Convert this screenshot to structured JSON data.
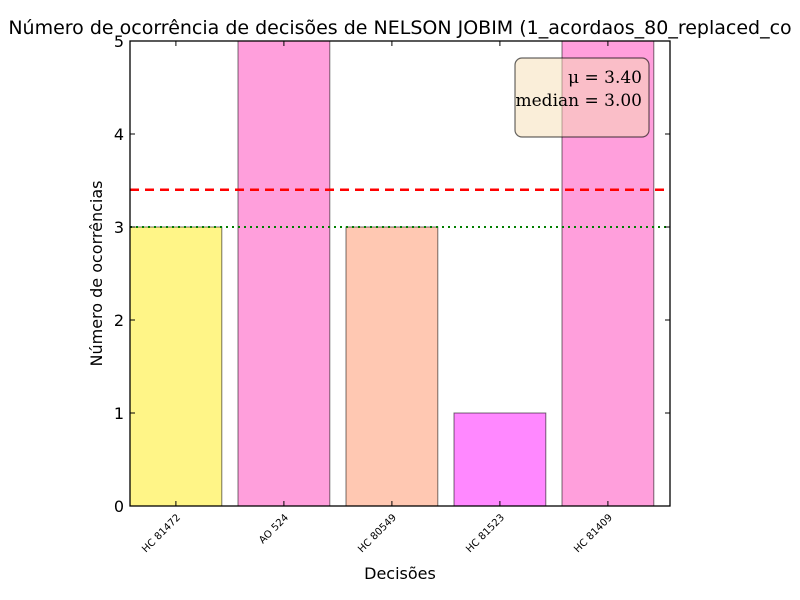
{
  "chart_data": {
    "type": "bar",
    "title": "Número de ocorrência de decisões de NELSON JOBIM (1_acordaos_80_replaced_co",
    "xlabel": "Decisões",
    "ylabel": "Número de ocorrências",
    "categories": [
      "HC 81472",
      "AO 524",
      "HC 80549",
      "HC 81523",
      "HC 81409"
    ],
    "values": [
      3,
      5,
      3,
      1,
      5
    ],
    "colors": [
      "#fff587",
      "#ff9fdc",
      "#ffc8b2",
      "#ff88ff",
      "#ff9fdc"
    ],
    "ylim": [
      0,
      5
    ],
    "yticks": [
      "0",
      "1",
      "2",
      "3",
      "4",
      "5"
    ],
    "mean": 3.4,
    "median": 3.0,
    "mean_line_color": "#ff0000",
    "median_line_color": "#007f00",
    "stats_box": {
      "mean_text": "μ = 3.40",
      "median_text": "median = 3.00",
      "placement": "top-right"
    },
    "grid": false
  }
}
